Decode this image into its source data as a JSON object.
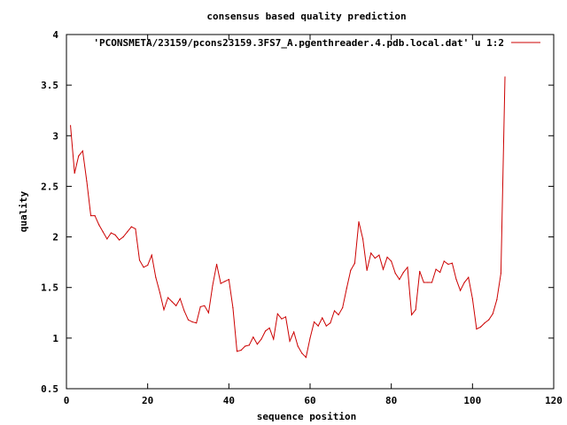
{
  "chart_data": {
    "type": "line",
    "title": "consensus based quality prediction",
    "xlabel": "sequence position",
    "ylabel": "quality",
    "xlim": [
      0,
      120
    ],
    "ylim": [
      0.5,
      4
    ],
    "xticks": [
      "0",
      "20",
      "40",
      "60",
      "80",
      "100",
      "120"
    ],
    "yticks": [
      "0.5",
      "1",
      "1.5",
      "2",
      "2.5",
      "3",
      "3.5",
      "4"
    ],
    "legend_position": "top-right",
    "grid": false,
    "series": [
      {
        "name": "'PCONSMETA/23159/pcons23159.3FS7_A.pgenthreader.4.pdb.local.dat' u 1:2",
        "color": "#cc0000",
        "x": [
          1,
          2,
          3,
          4,
          5,
          6,
          7,
          8,
          9,
          10,
          11,
          12,
          13,
          14,
          15,
          16,
          17,
          18,
          19,
          20,
          21,
          22,
          23,
          24,
          25,
          26,
          27,
          28,
          29,
          30,
          31,
          32,
          33,
          34,
          35,
          36,
          37,
          38,
          39,
          40,
          41,
          42,
          43,
          44,
          45,
          46,
          47,
          48,
          49,
          50,
          51,
          52,
          53,
          54,
          55,
          56,
          57,
          58,
          59,
          60,
          61,
          62,
          63,
          64,
          65,
          66,
          67,
          68,
          69,
          70,
          71,
          72,
          73,
          74,
          75,
          76,
          77,
          78,
          79,
          80,
          81,
          82,
          83,
          84,
          85,
          86,
          87,
          88,
          89,
          90,
          91,
          92,
          93,
          94,
          95,
          96,
          97,
          98,
          99,
          100,
          101,
          102,
          103,
          104,
          105,
          106,
          107,
          108
        ],
        "values": [
          3.1,
          2.63,
          2.8,
          2.85,
          2.55,
          2.21,
          2.21,
          2.12,
          2.05,
          1.98,
          2.04,
          2.02,
          1.97,
          2.0,
          2.05,
          2.1,
          2.08,
          1.77,
          1.7,
          1.72,
          1.82,
          1.6,
          1.45,
          1.28,
          1.4,
          1.36,
          1.32,
          1.39,
          1.27,
          1.18,
          1.16,
          1.15,
          1.31,
          1.32,
          1.25,
          1.52,
          1.73,
          1.54,
          1.56,
          1.58,
          1.3,
          0.87,
          0.88,
          0.92,
          0.93,
          1.01,
          0.94,
          0.99,
          1.07,
          1.1,
          0.99,
          1.24,
          1.19,
          1.21,
          0.97,
          1.06,
          0.92,
          0.85,
          0.81,
          1.0,
          1.16,
          1.12,
          1.2,
          1.12,
          1.15,
          1.27,
          1.23,
          1.3,
          1.49,
          1.67,
          1.74,
          2.15,
          1.98,
          1.67,
          1.84,
          1.79,
          1.82,
          1.68,
          1.8,
          1.76,
          1.64,
          1.58,
          1.65,
          1.7,
          1.23,
          1.28,
          1.66,
          1.55,
          1.55,
          1.55,
          1.68,
          1.65,
          1.76,
          1.73,
          1.74,
          1.58,
          1.47,
          1.55,
          1.6,
          1.39,
          1.09,
          1.11,
          1.15,
          1.18,
          1.24,
          1.38,
          1.64,
          3.58
        ]
      }
    ]
  }
}
